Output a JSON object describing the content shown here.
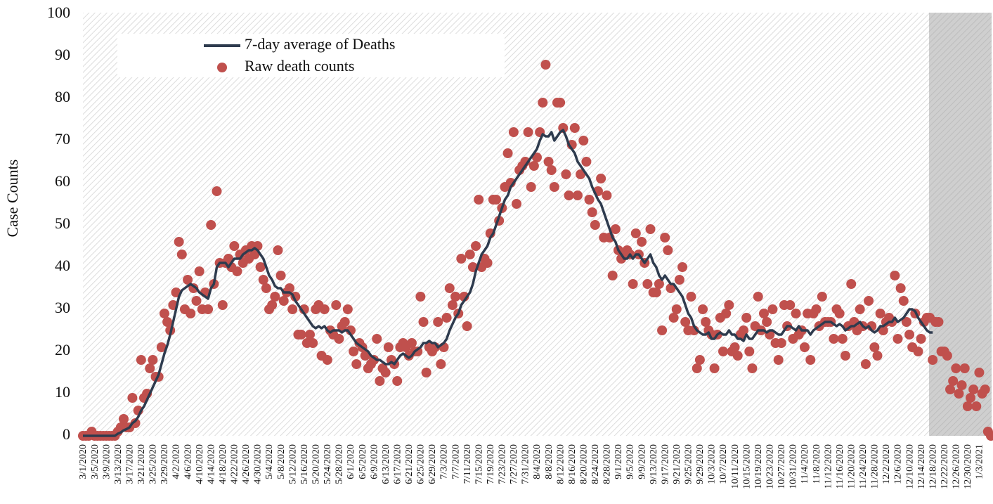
{
  "chart_data": {
    "type": "line",
    "ylabel": "Case Counts",
    "legend": "upper left",
    "grid": false,
    "ylim": [
      0,
      100
    ],
    "yticks": [
      0,
      10,
      20,
      30,
      40,
      50,
      60,
      70,
      80,
      90,
      100
    ],
    "categories": [
      "3/1/2020",
      null,
      null,
      null,
      "3/5/2020",
      null,
      null,
      null,
      "3/9/2020",
      null,
      null,
      null,
      "3/13/2020",
      null,
      null,
      null,
      "3/17/2020",
      null,
      null,
      null,
      "3/21/2020",
      null,
      null,
      null,
      "3/25/2020",
      null,
      null,
      null,
      "3/29/2020",
      null,
      null,
      null,
      "4/2/2020",
      null,
      null,
      null,
      "4/6/2020",
      null,
      null,
      null,
      "4/10/2020",
      null,
      null,
      null,
      "4/14/2020",
      null,
      null,
      null,
      "4/18/2020",
      null,
      null,
      null,
      "4/22/2020",
      null,
      null,
      null,
      "4/26/2020",
      null,
      null,
      null,
      "4/30/2020",
      null,
      null,
      null,
      "5/4/2020",
      null,
      null,
      null,
      "5/8/2020",
      null,
      null,
      null,
      "5/12/2020",
      null,
      null,
      null,
      "5/16/2020",
      null,
      null,
      null,
      "5/20/2020",
      null,
      null,
      null,
      "5/24/2020",
      null,
      null,
      null,
      "5/28/2020",
      null,
      null,
      null,
      "6/1/2020",
      null,
      null,
      null,
      "6/5/2020",
      null,
      null,
      null,
      "6/9/2020",
      null,
      null,
      null,
      "6/13/2020",
      null,
      null,
      null,
      "6/17/2020",
      null,
      null,
      null,
      "6/21/2020",
      null,
      null,
      null,
      "6/25/2020",
      null,
      null,
      null,
      "6/29/2020",
      null,
      null,
      null,
      "7/3/2020",
      null,
      null,
      null,
      "7/7/2020",
      null,
      null,
      null,
      "7/11/2020",
      null,
      null,
      null,
      "7/15/2020",
      null,
      null,
      null,
      "7/19/2020",
      null,
      null,
      null,
      "7/23/2020",
      null,
      null,
      null,
      "7/27/2020",
      null,
      null,
      null,
      "7/31/2020",
      null,
      null,
      null,
      "8/4/2020",
      null,
      null,
      null,
      "8/8/2020",
      null,
      null,
      null,
      "8/12/2020",
      null,
      null,
      null,
      "8/16/2020",
      null,
      null,
      null,
      "8/20/2020",
      null,
      null,
      null,
      "8/24/2020",
      null,
      null,
      null,
      "8/28/2020",
      null,
      null,
      null,
      "9/1/2020",
      null,
      null,
      null,
      "9/5/2020",
      null,
      null,
      null,
      "9/9/2020",
      null,
      null,
      null,
      "9/13/2020",
      null,
      null,
      null,
      "9/17/2020",
      null,
      null,
      null,
      "9/21/2020",
      null,
      null,
      null,
      "9/25/2020",
      null,
      null,
      null,
      "9/29/2020",
      null,
      null,
      null,
      "10/3/2020",
      null,
      null,
      null,
      "10/7/2020",
      null,
      null,
      null,
      "10/11/2020",
      null,
      null,
      null,
      "10/15/2020",
      null,
      null,
      null,
      "10/19/2020",
      null,
      null,
      null,
      "10/23/2020",
      null,
      null,
      null,
      "10/27/2020",
      null,
      null,
      null,
      "10/31/2020",
      null,
      null,
      null,
      "11/4/2020",
      null,
      null,
      null,
      "11/8/2020",
      null,
      null,
      null,
      "11/12/2020",
      null,
      null,
      null,
      "11/16/2020",
      null,
      null,
      null,
      "11/20/2020",
      null,
      null,
      null,
      "11/24/2020",
      null,
      null,
      null,
      "11/28/2020",
      null,
      null,
      null,
      "12/2/2020",
      null,
      null,
      null,
      "12/6/2020",
      null,
      null,
      null,
      "12/10/2020",
      null,
      null,
      null,
      "12/14/2020",
      null,
      null,
      null,
      "12/18/2020",
      null,
      null,
      null,
      "12/22/2020",
      null,
      null,
      null,
      "12/26/2020",
      null,
      null,
      null,
      "12/30/2020",
      null,
      null,
      null,
      "1/3/2021",
      null,
      null,
      null,
      null
    ],
    "series": [
      {
        "name": "7-day average of Deaths",
        "type": "line",
        "color": "#2e3b4e",
        "values": [
          0,
          0,
          0,
          0,
          0,
          0,
          0,
          0,
          0,
          0,
          0,
          0,
          0.5,
          0.8,
          1.3,
          1.6,
          2,
          3,
          3.5,
          4.5,
          6,
          7,
          8.5,
          10,
          11.5,
          13,
          14.5,
          17,
          19.5,
          21.5,
          24,
          27,
          30,
          33,
          34.5,
          35,
          35.5,
          36,
          35.5,
          35,
          34,
          33.5,
          33,
          32.5,
          35,
          36,
          40,
          41,
          41,
          41,
          40,
          41,
          42,
          42,
          42,
          43,
          43.5,
          44,
          44,
          44.5,
          44,
          43,
          42,
          40,
          38,
          37,
          35.5,
          35,
          35,
          34,
          34,
          34,
          33.5,
          32,
          31,
          30,
          29,
          28,
          27,
          26,
          25.5,
          26,
          25.5,
          26,
          25,
          24.5,
          25,
          25,
          25,
          24.5,
          25,
          25,
          24,
          23,
          22,
          21.5,
          21,
          20.5,
          20,
          19,
          18.5,
          18,
          18,
          17.5,
          17,
          17,
          17.5,
          17,
          18,
          19,
          19.5,
          19,
          18.5,
          19,
          20,
          20.5,
          21,
          22,
          22,
          22.5,
          22,
          22,
          21,
          21.5,
          22,
          23,
          25,
          26.5,
          28,
          29,
          31,
          32,
          33,
          34,
          36,
          39,
          41,
          43,
          44,
          45,
          47,
          48,
          50,
          52,
          54,
          56,
          57,
          59,
          60,
          61,
          62,
          63,
          64,
          65,
          66,
          67,
          68,
          70,
          71.5,
          71,
          71,
          72,
          70,
          71,
          72,
          72.5,
          71,
          69,
          68,
          67,
          65,
          64,
          63,
          62,
          61,
          59,
          57.5,
          56,
          55,
          53,
          51,
          49,
          47,
          46,
          44,
          43,
          42,
          42,
          43,
          42,
          43,
          43,
          42,
          41,
          42,
          43,
          41,
          40,
          38,
          37,
          38,
          37,
          36,
          36,
          35,
          34,
          33,
          31,
          29,
          28,
          26,
          25,
          24.5,
          24,
          24,
          24.5,
          23,
          23,
          24,
          24.5,
          24,
          24,
          25,
          24,
          24,
          23,
          23,
          22.5,
          24,
          23,
          23,
          24,
          25,
          25,
          25,
          24.5,
          25,
          25,
          24.5,
          24,
          24,
          25,
          26,
          26,
          25.5,
          25,
          26,
          25,
          25,
          25,
          24,
          25,
          25.5,
          26,
          26.5,
          27,
          27,
          27,
          26.5,
          26,
          26.5,
          26,
          25,
          25.5,
          26,
          26,
          26.5,
          27,
          26,
          25.5,
          26,
          25,
          24.5,
          25,
          26,
          26,
          26.5,
          27,
          27,
          28,
          27,
          27.5,
          28,
          29,
          30,
          30,
          29.5,
          28,
          27,
          26,
          25,
          24.5,
          24.5,
          null,
          null,
          null,
          null,
          null,
          null,
          null,
          null,
          null,
          null,
          null,
          null,
          null,
          null,
          null,
          null,
          null,
          null,
          null,
          null
        ]
      },
      {
        "name": "Raw death counts",
        "type": "scatter",
        "color": "#c0504d",
        "values": [
          0,
          0,
          0,
          1,
          0,
          0,
          0,
          0,
          0,
          0,
          0,
          0,
          1,
          2,
          4,
          2,
          2,
          9,
          3,
          6,
          18,
          9,
          10,
          16,
          18,
          14,
          14,
          21,
          29,
          27,
          25,
          31,
          34,
          46,
          43,
          30,
          37,
          29,
          35,
          32,
          39,
          30,
          34,
          30,
          50,
          36,
          58,
          41,
          31,
          41,
          42,
          40,
          45,
          39,
          43,
          41,
          44,
          42,
          45,
          43,
          45,
          40,
          37,
          35,
          30,
          31,
          33,
          44,
          38,
          32,
          34,
          35,
          30,
          33,
          24,
          24,
          30,
          22,
          24,
          22,
          30,
          31,
          19,
          30,
          18,
          25,
          24,
          31,
          23,
          26,
          27,
          30,
          25,
          20,
          17,
          22,
          21,
          19,
          16,
          17,
          18,
          23,
          13,
          16,
          15,
          21,
          18,
          17,
          13,
          21,
          22,
          21,
          19,
          22,
          20,
          20,
          33,
          27,
          15,
          21,
          20,
          21,
          27,
          17,
          21,
          28,
          35,
          31,
          33,
          29,
          42,
          33,
          26,
          43,
          40,
          45,
          56,
          40,
          42,
          41,
          48,
          56,
          56,
          51,
          54,
          59,
          67,
          60,
          72,
          55,
          63,
          64,
          65,
          72,
          59,
          64,
          66,
          72,
          79,
          88,
          65,
          63,
          59,
          79,
          79,
          73,
          62,
          57,
          69,
          73,
          57,
          62,
          70,
          65,
          56,
          53,
          50,
          58,
          61,
          47,
          57,
          47,
          38,
          49,
          44,
          42,
          43,
          44,
          43,
          36,
          48,
          43,
          46,
          41,
          36,
          49,
          34,
          34,
          36,
          25,
          47,
          44,
          35,
          28,
          30,
          37,
          40,
          27,
          25,
          33,
          25,
          16,
          18,
          30,
          27,
          25,
          24,
          16,
          24,
          28,
          20,
          29,
          31,
          20,
          21,
          19,
          24,
          25,
          28,
          20,
          16,
          26,
          33,
          25,
          29,
          27,
          24,
          30,
          22,
          18,
          22,
          31,
          26,
          31,
          23,
          29,
          24,
          25,
          21,
          29,
          18,
          29,
          30,
          26,
          33,
          27,
          27,
          27,
          23,
          30,
          29,
          23,
          19,
          26,
          36,
          27,
          25,
          30,
          26,
          17,
          32,
          26,
          21,
          19,
          29,
          25,
          27,
          28,
          27,
          38,
          23,
          35,
          32,
          27,
          24,
          21,
          29,
          20,
          23,
          27,
          28,
          28,
          18,
          27,
          27,
          20,
          20,
          19,
          11,
          13,
          16,
          10,
          12,
          16,
          7,
          9,
          11,
          7,
          15,
          10,
          11,
          1,
          0
        ]
      }
    ]
  }
}
